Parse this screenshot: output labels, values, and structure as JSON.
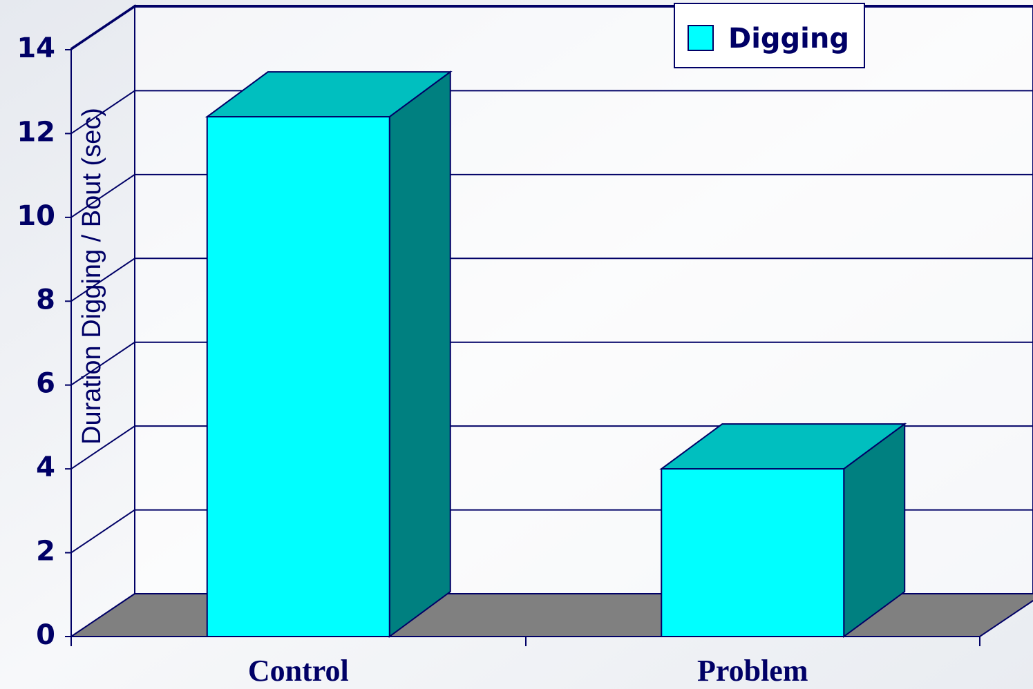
{
  "chart_data": {
    "type": "bar",
    "y_label": "Duration Digging / Bout (sec)",
    "categories": [
      "Control",
      "Problem"
    ],
    "series": [
      {
        "name": "Digging",
        "color": "#00ffff",
        "values": [
          12.4,
          4.0
        ]
      }
    ],
    "ylim": [
      0,
      14
    ],
    "yticks": [
      0,
      2,
      4,
      6,
      8,
      10,
      12,
      14
    ],
    "grid": true,
    "legend": "top-right"
  }
}
